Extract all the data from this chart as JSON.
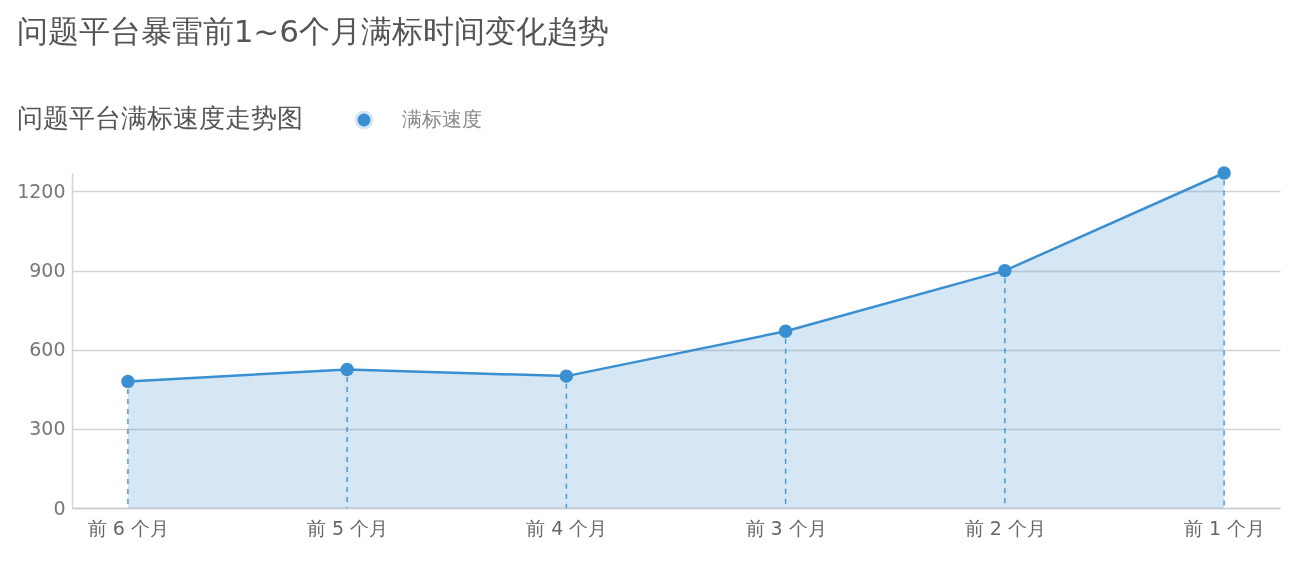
{
  "chart_data": {
    "type": "area",
    "title": "问题平台暴雷前1~6个月满标时间变化趋势",
    "subtitle": "问题平台满标速度走势图",
    "categories": [
      "前 6 个月",
      "前 5 个月",
      "前 4 个月",
      "前 3 个月",
      "前 2 个月",
      "前 1 个月"
    ],
    "series": [
      {
        "color": "#3a8fd0",
        "values": [
          480,
          525,
          500,
          670,
          900,
          1270
        ],
        "marker": "none"
      },
      {
        "name": "满标速度",
        "type": "lollipop",
        "color": "#3a8fd0",
        "values": [
          480,
          525,
          500,
          670,
          900,
          1270
        ],
        "line_style": "dashed"
      }
    ],
    "ylim": [
      0,
      1270
    ],
    "yticks": [
      0,
      300,
      600,
      900,
      1200
    ],
    "grid": "y",
    "legend": "top left",
    "marker": "circle",
    "line_style": "solid"
  }
}
